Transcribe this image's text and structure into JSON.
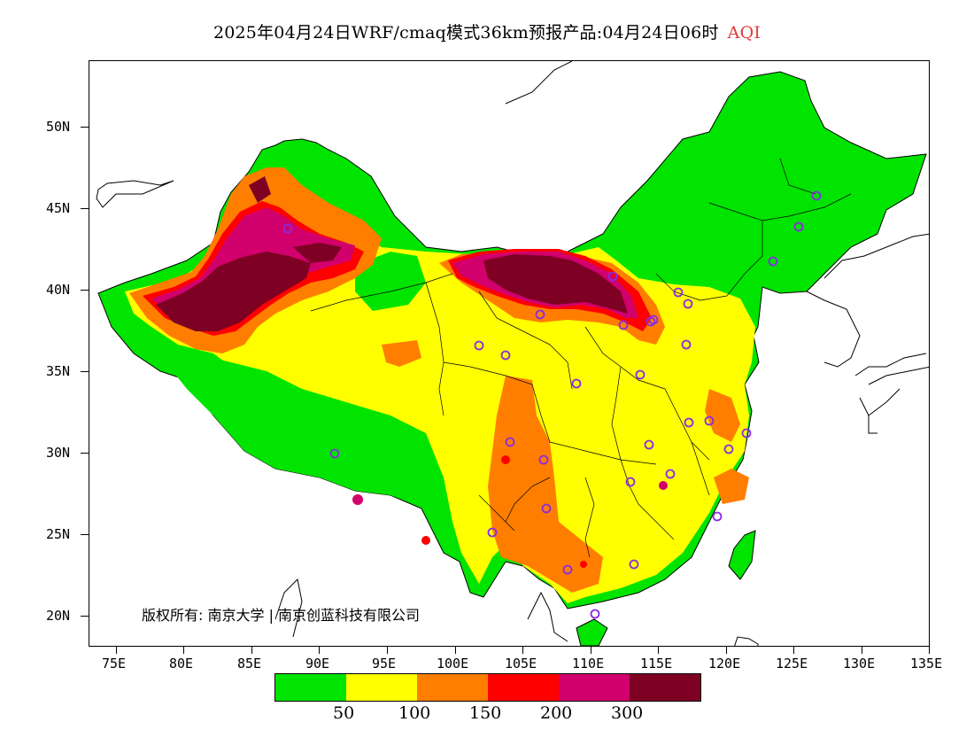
{
  "title": {
    "main": "2025年04月24日WRF/cmaq模式36km预报产品:04月24日06时",
    "variable": "AQI",
    "variable_color": "#e03a3a"
  },
  "axes": {
    "y_ticks": [
      "50N",
      "45N",
      "40N",
      "35N",
      "30N",
      "25N",
      "20N"
    ],
    "x_ticks": [
      "75E",
      "80E",
      "85E",
      "90E",
      "95E",
      "100E",
      "105E",
      "110E",
      "115E",
      "120E",
      "125E",
      "130E",
      "135E"
    ]
  },
  "copyright": "版权所有: 南京大学 | 南京创蓝科技有限公司",
  "legend": {
    "colors": [
      "#00e400",
      "#ffff00",
      "#ff7e00",
      "#ff0000",
      "#d1006c",
      "#7e0023"
    ],
    "labels": [
      "50",
      "100",
      "150",
      "200",
      "300"
    ]
  },
  "colors": {
    "outside": "#ffffff",
    "good": "#00e400",
    "moderate": "#ffff00",
    "usg": "#ff7e00",
    "unhealthy": "#ff0000",
    "very_unhealthy": "#d1006c",
    "hazardous": "#7e0023",
    "city_marker": "#8a2be2"
  }
}
